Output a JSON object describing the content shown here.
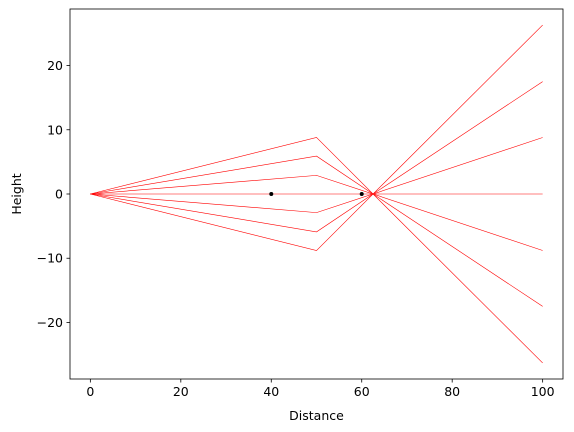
{
  "chart_data": {
    "type": "line",
    "title": "",
    "xlabel": "Distance",
    "ylabel": "Height",
    "xlim": [
      -4.5,
      104.5
    ],
    "ylim": [
      -28.8,
      28.8
    ],
    "xticks": [
      0,
      20,
      40,
      60,
      80,
      100
    ],
    "xtick_labels": [
      "0",
      "20",
      "40",
      "60",
      "80",
      "100"
    ],
    "yticks": [
      -20,
      -10,
      0,
      10,
      20
    ],
    "ytick_labels": [
      "−20",
      "−10",
      "0",
      "10",
      "20"
    ],
    "grid": false,
    "line_color": "#ff0000",
    "point_color": "#000000",
    "series": [
      {
        "x": [
          0,
          50,
          62.5,
          100
        ],
        "y": [
          0,
          8.8,
          0,
          26.3
        ]
      },
      {
        "x": [
          0,
          50,
          62.5,
          100
        ],
        "y": [
          0,
          5.9,
          0,
          17.5
        ]
      },
      {
        "x": [
          0,
          50,
          62.5,
          100
        ],
        "y": [
          0,
          2.9,
          0,
          8.8
        ]
      },
      {
        "x": [
          0,
          50,
          62.5,
          100
        ],
        "y": [
          0,
          0,
          0,
          0
        ]
      },
      {
        "x": [
          0,
          50,
          62.5,
          100
        ],
        "y": [
          0,
          -2.9,
          0,
          -8.8
        ]
      },
      {
        "x": [
          0,
          50,
          62.5,
          100
        ],
        "y": [
          0,
          -5.9,
          0,
          -17.5
        ]
      },
      {
        "x": [
          0,
          50,
          62.5,
          100
        ],
        "y": [
          0,
          -8.8,
          0,
          -26.3
        ]
      }
    ],
    "points": [
      {
        "x": 40,
        "y": 0
      },
      {
        "x": 60,
        "y": 0
      }
    ]
  }
}
